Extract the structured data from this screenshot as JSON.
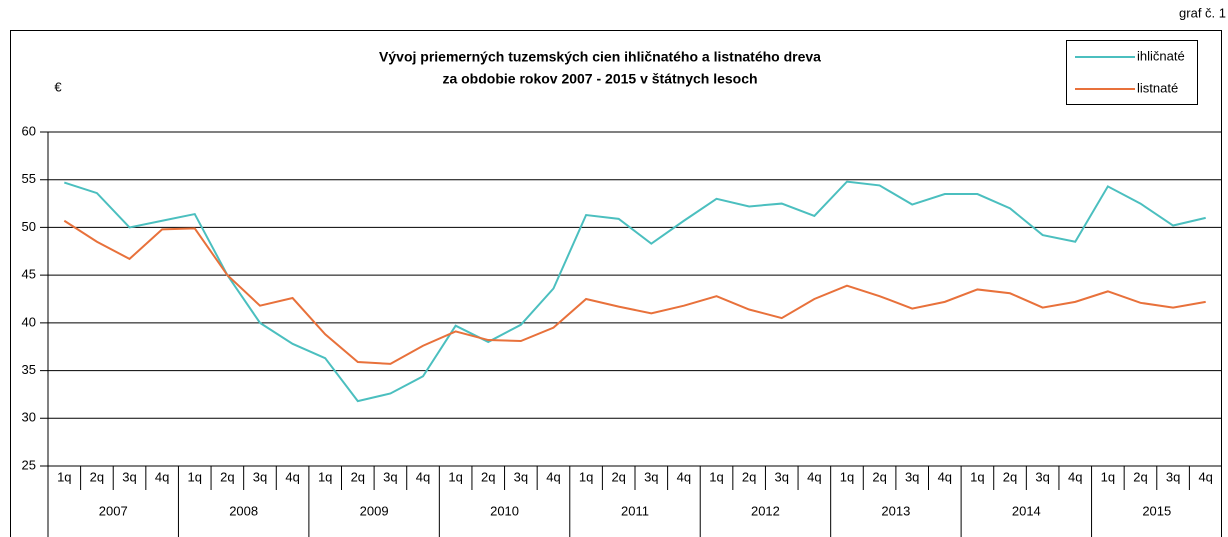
{
  "label": "graf č. 1",
  "chart_data": {
    "type": "line",
    "title": [
      "Vývoj priemerných tuzemských cien ihličnatého a listnatého dreva",
      "za obdobie rokov 2007 - 2015 v štátnych lesoch"
    ],
    "y_label": "€",
    "categories": [
      "1q",
      "2q",
      "3q",
      "4q",
      "1q",
      "2q",
      "3q",
      "4q",
      "1q",
      "2q",
      "3q",
      "4q",
      "1q",
      "2q",
      "3q",
      "4q",
      "1q",
      "2q",
      "3q",
      "4q",
      "1q",
      "2q",
      "3q",
      "4q",
      "1q",
      "2q",
      "3q",
      "4q",
      "1q",
      "2q",
      "3q",
      "4q",
      "1q",
      "2q",
      "3q",
      "4q"
    ],
    "groups": [
      "2007",
      "2008",
      "2009",
      "2010",
      "2011",
      "2012",
      "2013",
      "2014",
      "2015"
    ],
    "series": [
      {
        "name": "ihličnaté",
        "color": "#4bbfbf",
        "values": [
          54.7,
          53.6,
          50.0,
          50.7,
          51.4,
          45.0,
          40.0,
          37.8,
          36.3,
          31.8,
          32.6,
          34.4,
          39.7,
          38.0,
          39.8,
          43.6,
          51.3,
          50.9,
          48.3,
          50.7,
          53.0,
          52.2,
          52.5,
          51.2,
          54.8,
          54.4,
          52.4,
          53.5,
          53.5,
          52.0,
          49.2,
          48.5,
          54.3,
          52.5,
          50.2,
          51.0
        ]
      },
      {
        "name": "listnaté",
        "color": "#e8713b",
        "values": [
          50.7,
          48.5,
          46.7,
          49.8,
          49.9,
          45.0,
          41.8,
          42.6,
          38.8,
          35.9,
          35.7,
          37.6,
          39.1,
          38.2,
          38.1,
          39.5,
          42.5,
          41.7,
          41.0,
          41.8,
          42.8,
          41.4,
          40.5,
          42.5,
          43.9,
          42.8,
          41.5,
          42.2,
          43.5,
          43.1,
          41.6,
          42.2,
          43.3,
          42.1,
          41.6,
          42.2
        ]
      }
    ],
    "ylim": [
      25,
      60
    ],
    "yticks": [
      25,
      30,
      35,
      40,
      45,
      50,
      55,
      60
    ],
    "grid": true,
    "legend": "top-right"
  }
}
